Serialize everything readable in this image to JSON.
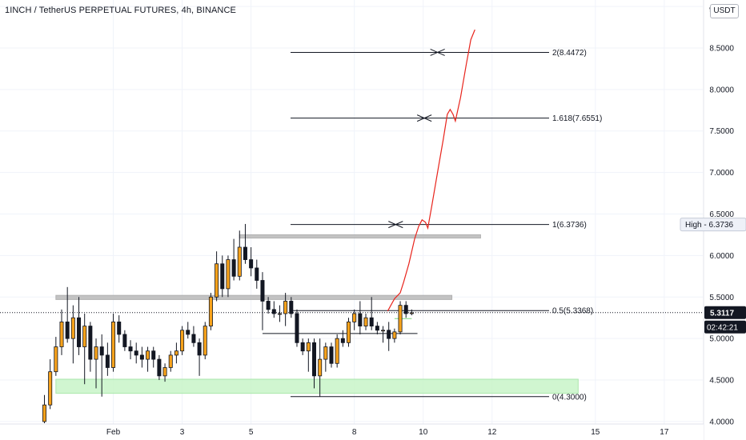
{
  "header": {
    "title": "1INCH / TetherUS PERPETUAL FUTURES, 4h, BINANCE",
    "currency": "USDT"
  },
  "colors": {
    "bull": "#f7a21b",
    "bear": "#131722",
    "projection": "#e8241c",
    "support_zone": "#c8f5c8",
    "resistance_zone": "#bdbdbd",
    "grid": "#f0f3fa"
  },
  "chart_data": {
    "type": "candlestick",
    "timeframe": "4h",
    "ylim": [
      3.98,
      9.03
    ],
    "y_ticks": [
      "4.0000",
      "4.5000",
      "5.0000",
      "5.5000",
      "6.0000",
      "6.5000",
      "7.0000",
      "7.5000",
      "8.0000",
      "8.5000",
      "9"
    ],
    "x_ticks": [
      {
        "label": "Feb",
        "t": 12
      },
      {
        "label": "3",
        "t": 24
      },
      {
        "label": "5",
        "t": 36
      },
      {
        "label": "8",
        "t": 54
      },
      {
        "label": "10",
        "t": 66
      },
      {
        "label": "12",
        "t": 78
      },
      {
        "label": "15",
        "t": 96
      },
      {
        "label": "17",
        "t": 108
      }
    ],
    "candles": [
      [
        4.0,
        4.32,
        3.98,
        4.2
      ],
      [
        4.2,
        4.75,
        4.15,
        4.6
      ],
      [
        4.6,
        5.02,
        4.55,
        4.9
      ],
      [
        4.9,
        5.35,
        4.8,
        5.2
      ],
      [
        5.2,
        5.62,
        4.95,
        5.0
      ],
      [
        5.0,
        5.4,
        4.7,
        5.25
      ],
      [
        5.25,
        5.5,
        4.8,
        4.9
      ],
      [
        4.9,
        5.3,
        4.45,
        5.15
      ],
      [
        5.15,
        5.2,
        4.6,
        4.75
      ],
      [
        4.75,
        5.0,
        4.4,
        4.9
      ],
      [
        4.9,
        5.05,
        4.3,
        4.8
      ],
      [
        4.8,
        4.95,
        4.55,
        4.65
      ],
      [
        4.65,
        5.3,
        4.6,
        5.2
      ],
      [
        5.2,
        5.28,
        4.95,
        5.05
      ],
      [
        5.05,
        5.1,
        4.85,
        4.9
      ],
      [
        4.9,
        4.98,
        4.75,
        4.85
      ],
      [
        4.85,
        4.95,
        4.7,
        4.8
      ],
      [
        4.8,
        4.9,
        4.65,
        4.75
      ],
      [
        4.75,
        4.9,
        4.6,
        4.85
      ],
      [
        4.85,
        4.9,
        4.65,
        4.75
      ],
      [
        4.75,
        4.8,
        4.5,
        4.55
      ],
      [
        4.55,
        4.7,
        4.48,
        4.65
      ],
      [
        4.65,
        4.85,
        4.6,
        4.8
      ],
      [
        4.8,
        4.95,
        4.7,
        4.85
      ],
      [
        4.85,
        5.15,
        4.8,
        5.1
      ],
      [
        5.1,
        5.2,
        5.0,
        5.05
      ],
      [
        5.05,
        5.15,
        4.9,
        4.95
      ],
      [
        4.95,
        5.0,
        4.55,
        4.8
      ],
      [
        4.8,
        5.2,
        4.75,
        5.15
      ],
      [
        5.15,
        5.55,
        5.1,
        5.5
      ],
      [
        5.5,
        6.05,
        5.45,
        5.9
      ],
      [
        5.9,
        6.0,
        5.5,
        5.6
      ],
      [
        5.6,
        6.0,
        5.5,
        5.95
      ],
      [
        5.95,
        6.2,
        5.7,
        5.75
      ],
      [
        5.75,
        6.3,
        5.7,
        6.1
      ],
      [
        6.1,
        6.38,
        5.9,
        5.95
      ],
      [
        5.95,
        6.1,
        5.75,
        5.85
      ],
      [
        5.85,
        5.95,
        5.6,
        5.7
      ],
      [
        5.7,
        5.8,
        5.1,
        5.45
      ],
      [
        5.45,
        5.5,
        5.3,
        5.35
      ],
      [
        5.35,
        5.45,
        5.25,
        5.3
      ],
      [
        5.3,
        5.4,
        5.2,
        5.3
      ],
      [
        5.3,
        5.55,
        5.15,
        5.45
      ],
      [
        5.45,
        5.5,
        5.25,
        5.3
      ],
      [
        5.3,
        5.35,
        4.9,
        4.95
      ],
      [
        4.95,
        5.0,
        4.8,
        4.85
      ],
      [
        4.85,
        5.0,
        4.6,
        4.95
      ],
      [
        4.95,
        5.0,
        4.4,
        4.55
      ],
      [
        4.55,
        5.0,
        4.3,
        4.75
      ],
      [
        4.75,
        4.95,
        4.6,
        4.9
      ],
      [
        4.9,
        4.95,
        4.65,
        4.7
      ],
      [
        4.7,
        5.05,
        4.65,
        5.0
      ],
      [
        5.0,
        5.1,
        4.9,
        4.95
      ],
      [
        4.95,
        5.25,
        4.9,
        5.2
      ],
      [
        5.2,
        5.35,
        5.1,
        5.3
      ],
      [
        5.3,
        5.45,
        5.05,
        5.15
      ],
      [
        5.15,
        5.3,
        5.1,
        5.25
      ],
      [
        5.25,
        5.5,
        5.1,
        5.15
      ],
      [
        5.15,
        5.2,
        5.05,
        5.1
      ],
      [
        5.1,
        5.15,
        4.95,
        5.1
      ],
      [
        5.1,
        5.2,
        4.85,
        5.0
      ],
      [
        5.0,
        5.12,
        4.95,
        5.08
      ],
      [
        5.08,
        5.45,
        5.05,
        5.4
      ],
      [
        5.4,
        5.45,
        5.25,
        5.3
      ],
      [
        5.3,
        5.35,
        5.28,
        5.31
      ]
    ],
    "fib_levels": [
      {
        "label": "2(8.4472)",
        "value": 8.4472
      },
      {
        "label": "1.618(7.6551)",
        "value": 7.6551
      },
      {
        "label": "1(6.3736)",
        "value": 6.3736
      },
      {
        "label": "0.5(5.3368)",
        "value": 5.3368
      },
      {
        "label": "0(4.3000)",
        "value": 4.3
      }
    ],
    "zones": [
      {
        "kind": "resistance",
        "t0": 2,
        "t1": 71,
        "y0": 5.47,
        "y1": 5.52
      },
      {
        "kind": "resistance",
        "t0": 34,
        "t1": 76,
        "y0": 6.21,
        "y1": 6.25
      },
      {
        "kind": "support",
        "t0": 2,
        "t1": 93,
        "y0": 4.34,
        "y1": 4.51
      }
    ],
    "horizontal_lines": [
      {
        "t0": 38,
        "t1": 65,
        "value": 5.06
      },
      {
        "t0": 61,
        "t1": 64,
        "value": 5.24
      }
    ],
    "projection": [
      [
        59.8,
        5.33
      ],
      [
        61,
        5.48
      ],
      [
        62,
        5.55
      ],
      [
        62.6,
        5.68
      ],
      [
        63.5,
        5.9
      ],
      [
        64.5,
        6.2
      ],
      [
        65.2,
        6.35
      ],
      [
        65.8,
        6.43
      ],
      [
        66.4,
        6.4
      ],
      [
        66.8,
        6.33
      ],
      [
        67.5,
        6.6
      ],
      [
        68.5,
        7.0
      ],
      [
        69.5,
        7.4
      ],
      [
        70.2,
        7.7
      ],
      [
        70.7,
        7.76
      ],
      [
        71.2,
        7.7
      ],
      [
        71.6,
        7.62
      ],
      [
        72.5,
        7.9
      ],
      [
        73.5,
        8.3
      ],
      [
        74.3,
        8.6
      ],
      [
        75,
        8.72
      ]
    ],
    "cross_marks": [
      {
        "t": 68.5,
        "value": 8.4472
      },
      {
        "t": 66.2,
        "value": 7.6551
      },
      {
        "t": 61.2,
        "value": 6.3736
      }
    ],
    "high_marker": {
      "label": "High - 6.3736",
      "value": 6.3736
    },
    "current_price": {
      "label": "5.3117",
      "value": 5.3117
    },
    "countdown": "02:42:21"
  }
}
